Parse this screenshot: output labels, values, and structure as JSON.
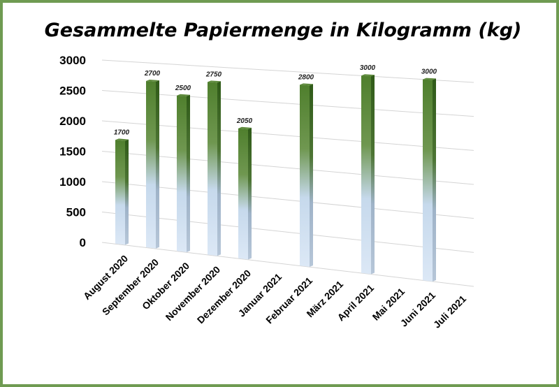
{
  "chart_data": {
    "type": "bar",
    "title": "Gesammelte Papiermenge in Kilogramm (kg)",
    "xlabel": "",
    "ylabel": "",
    "categories": [
      "August 2020",
      "September 2020",
      "Oktober 2020",
      "November 2020",
      "Dezember 2020",
      "Januar 2021",
      "Februar 2021",
      "März 2021",
      "April 2021",
      "Mai 2021",
      "Juni 2021",
      "Juli 2021"
    ],
    "values": [
      1700,
      2700,
      2500,
      2750,
      2050,
      null,
      2800,
      null,
      3000,
      null,
      3000,
      null
    ],
    "data_labels": [
      "1700",
      "2700",
      "2500",
      "2750",
      "2050",
      "",
      "2800",
      "",
      "3000",
      "",
      "3000",
      ""
    ],
    "ylim": [
      0,
      3000
    ],
    "yticks": [
      "0",
      "500",
      "1000",
      "1500",
      "2000",
      "2500",
      "3000"
    ],
    "grid": true,
    "legend": "none",
    "style": "3d",
    "colors": {
      "bar_top": "#4a7a2a",
      "bar_mid": "#7aa05a",
      "bar_bottom": "#d5e4f5",
      "frame": "#6f9b52",
      "grid": "#cfcfcf"
    }
  }
}
